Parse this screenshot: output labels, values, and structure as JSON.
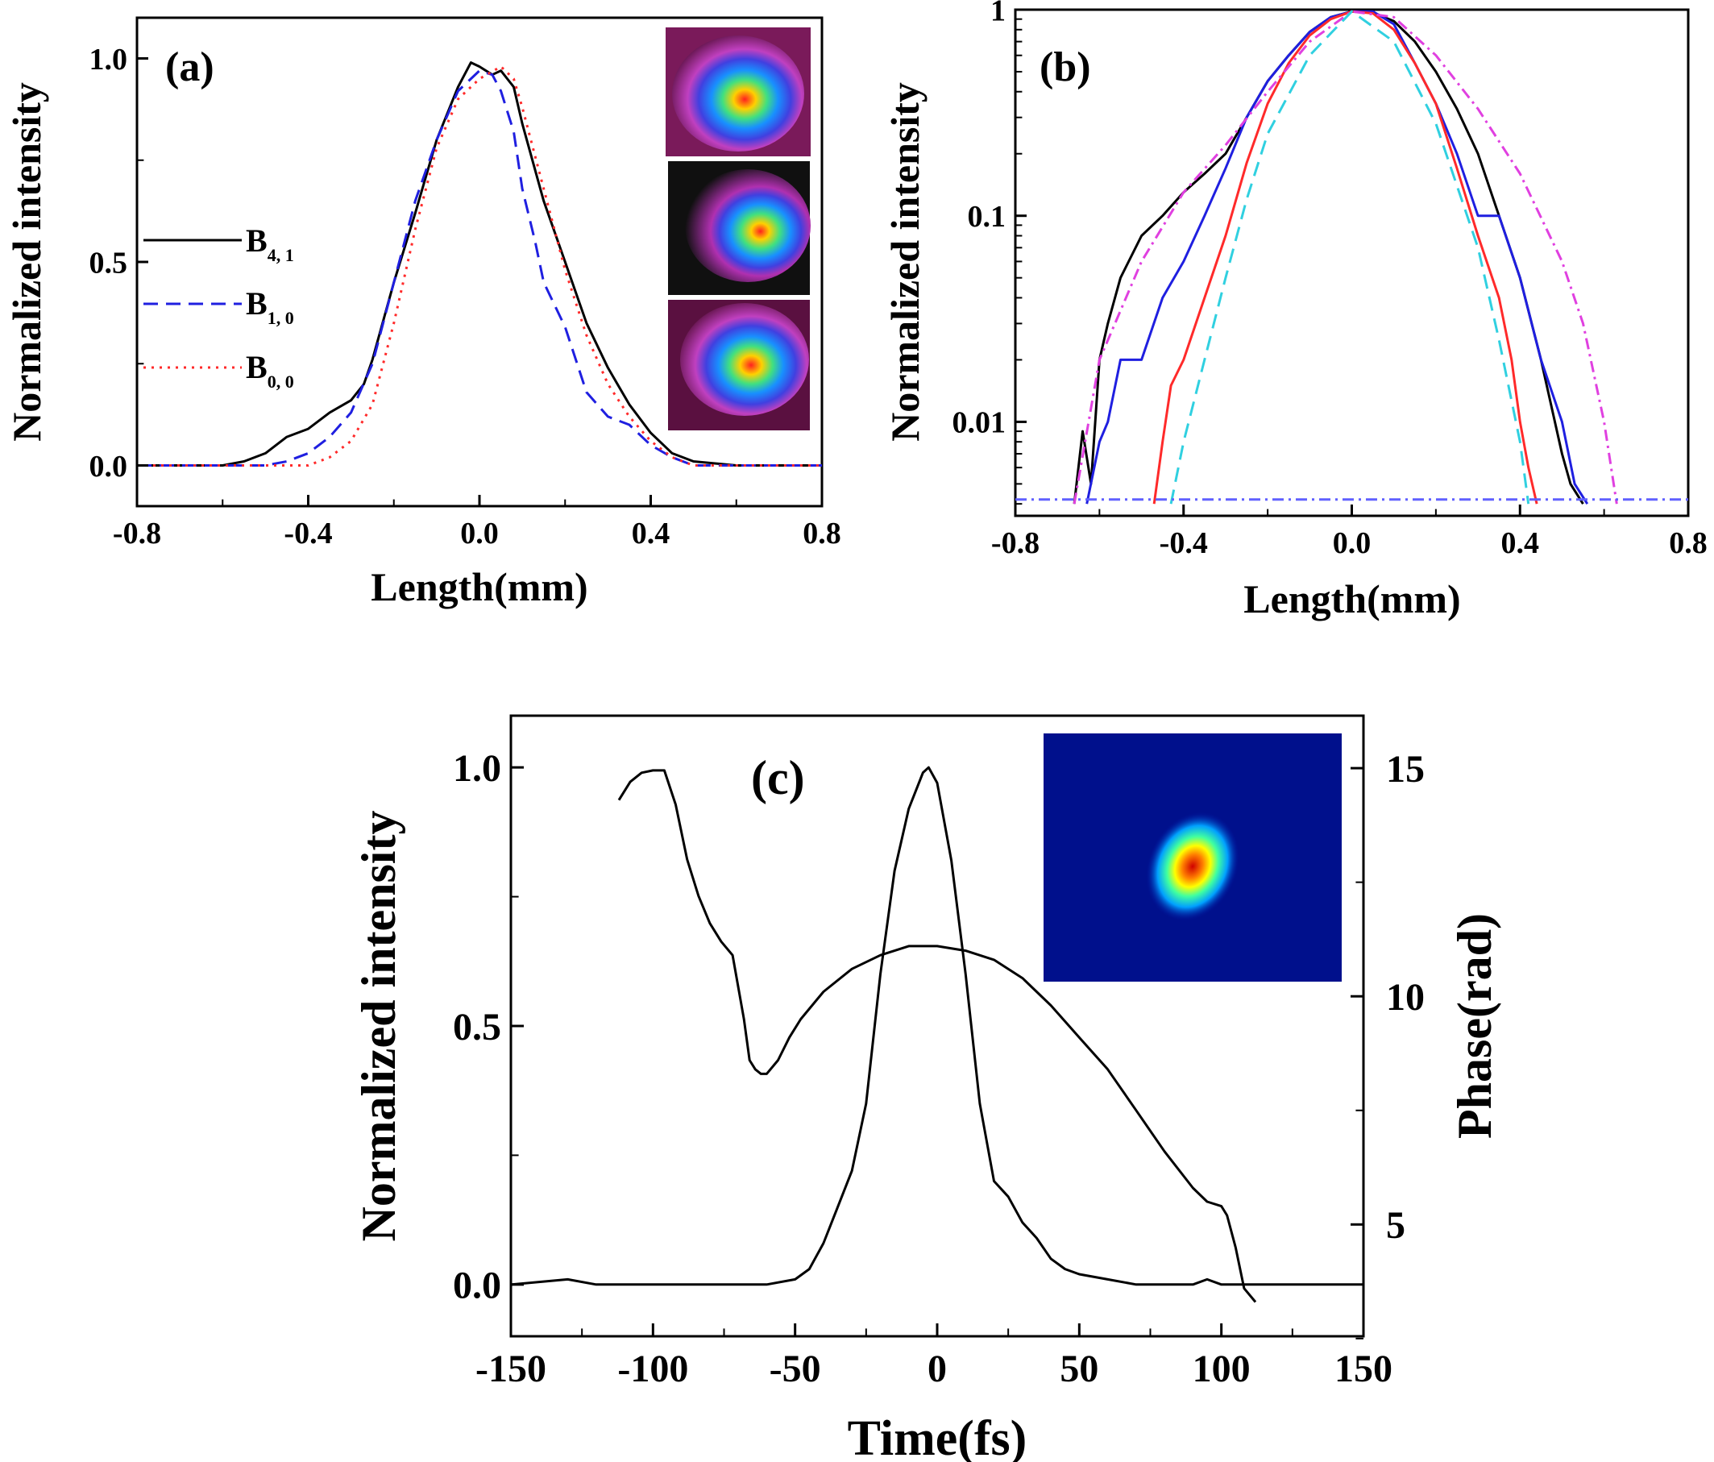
{
  "chart_data": [
    {
      "id": "a",
      "type": "line",
      "panel_label": "(a)",
      "xlabel": "Length(mm)",
      "ylabel": "Normalized intensity",
      "xlim": [
        -0.8,
        0.8
      ],
      "ylim": [
        -0.1,
        1.1
      ],
      "x_ticks": [
        -0.8,
        -0.4,
        0.0,
        0.4,
        0.8
      ],
      "x_tick_labels": [
        "-0.8",
        "-0.4",
        "0.0",
        "0.4",
        "0.8"
      ],
      "y_ticks": [
        0.0,
        0.5,
        1.0
      ],
      "y_tick_labels": [
        "0.0",
        "0.5",
        "1.0"
      ],
      "legend": [
        {
          "main": "B",
          "sub": "4, 1",
          "color": "#000000",
          "dash": "solid"
        },
        {
          "main": "B",
          "sub": "1, 0",
          "color": "#1f1fe0",
          "dash": "dash"
        },
        {
          "main": "B",
          "sub": "0, 0",
          "color": "#ff2a2a",
          "dash": "dot"
        }
      ],
      "series": [
        {
          "name": "B4,1",
          "color": "#000000",
          "dash": "solid",
          "x": [
            -0.8,
            -0.6,
            -0.55,
            -0.5,
            -0.45,
            -0.4,
            -0.35,
            -0.3,
            -0.27,
            -0.25,
            -0.2,
            -0.15,
            -0.1,
            -0.05,
            -0.02,
            0.0,
            0.03,
            0.05,
            0.08,
            0.1,
            0.15,
            0.2,
            0.25,
            0.3,
            0.35,
            0.4,
            0.45,
            0.5,
            0.6,
            0.8
          ],
          "y": [
            0.0,
            0.0,
            0.01,
            0.03,
            0.07,
            0.09,
            0.13,
            0.16,
            0.2,
            0.26,
            0.45,
            0.62,
            0.8,
            0.93,
            0.99,
            0.98,
            0.96,
            0.97,
            0.93,
            0.84,
            0.65,
            0.5,
            0.35,
            0.24,
            0.15,
            0.08,
            0.03,
            0.01,
            0.0,
            0.0
          ]
        },
        {
          "name": "B1,0",
          "color": "#1f1fe0",
          "dash": "dash",
          "x": [
            -0.8,
            -0.5,
            -0.45,
            -0.4,
            -0.35,
            -0.3,
            -0.25,
            -0.2,
            -0.15,
            -0.1,
            -0.05,
            0.0,
            0.03,
            0.05,
            0.08,
            0.1,
            0.13,
            0.15,
            0.2,
            0.25,
            0.3,
            0.35,
            0.4,
            0.45,
            0.5,
            0.8
          ],
          "y": [
            0.0,
            0.0,
            0.01,
            0.03,
            0.07,
            0.13,
            0.25,
            0.45,
            0.65,
            0.8,
            0.92,
            0.97,
            0.96,
            0.92,
            0.82,
            0.68,
            0.55,
            0.45,
            0.34,
            0.18,
            0.12,
            0.1,
            0.05,
            0.02,
            0.0,
            0.0
          ]
        },
        {
          "name": "B0,0",
          "color": "#ff2a2a",
          "dash": "dot",
          "x": [
            -0.8,
            -0.4,
            -0.35,
            -0.3,
            -0.25,
            -0.2,
            -0.15,
            -0.1,
            -0.05,
            0.0,
            0.05,
            0.08,
            0.1,
            0.15,
            0.2,
            0.25,
            0.3,
            0.35,
            0.4,
            0.45,
            0.5,
            0.8
          ],
          "y": [
            0.0,
            0.0,
            0.02,
            0.06,
            0.15,
            0.35,
            0.58,
            0.78,
            0.9,
            0.95,
            0.98,
            0.95,
            0.88,
            0.68,
            0.48,
            0.32,
            0.2,
            0.12,
            0.06,
            0.02,
            0.0,
            0.0
          ]
        }
      ]
    },
    {
      "id": "b",
      "type": "line",
      "panel_label": "(b)",
      "xlabel": "Length(mm)",
      "ylabel": "Normalized intensity",
      "yscale": "log",
      "xlim": [
        -0.8,
        0.8
      ],
      "ylim": [
        0.0035,
        1.0
      ],
      "x_ticks": [
        -0.8,
        -0.4,
        0.0,
        0.4,
        0.8
      ],
      "x_tick_labels": [
        "-0.8",
        "-0.4",
        "0.0",
        "0.4",
        "0.8"
      ],
      "y_ticks": [
        0.01,
        0.1,
        1
      ],
      "y_tick_labels": [
        "0.01",
        "0.1",
        "1"
      ],
      "series": [
        {
          "name": "black",
          "color": "#000000",
          "dash": "solid",
          "x": [
            -0.66,
            -0.64,
            -0.62,
            -0.6,
            -0.58,
            -0.55,
            -0.5,
            -0.45,
            -0.4,
            -0.35,
            -0.3,
            -0.25,
            -0.2,
            -0.15,
            -0.1,
            -0.05,
            0.0,
            0.05,
            0.1,
            0.15,
            0.2,
            0.25,
            0.3,
            0.35,
            0.4,
            0.45,
            0.5,
            0.52,
            0.55
          ],
          "y": [
            0.004,
            0.009,
            0.005,
            0.02,
            0.03,
            0.05,
            0.08,
            0.1,
            0.13,
            0.16,
            0.2,
            0.3,
            0.45,
            0.6,
            0.78,
            0.92,
            0.98,
            0.97,
            0.88,
            0.7,
            0.5,
            0.33,
            0.2,
            0.1,
            0.05,
            0.02,
            0.007,
            0.005,
            0.004
          ]
        },
        {
          "name": "blue",
          "color": "#1f1fe0",
          "dash": "solid",
          "x": [
            -0.63,
            -0.6,
            -0.58,
            -0.55,
            -0.5,
            -0.45,
            -0.4,
            -0.35,
            -0.3,
            -0.25,
            -0.2,
            -0.15,
            -0.1,
            -0.05,
            0.0,
            0.05,
            0.1,
            0.15,
            0.2,
            0.25,
            0.3,
            0.35,
            0.4,
            0.45,
            0.5,
            0.53,
            0.56
          ],
          "y": [
            0.004,
            0.008,
            0.01,
            0.02,
            0.02,
            0.04,
            0.06,
            0.1,
            0.17,
            0.3,
            0.45,
            0.6,
            0.78,
            0.92,
            0.98,
            0.98,
            0.85,
            0.55,
            0.35,
            0.2,
            0.1,
            0.1,
            0.05,
            0.02,
            0.01,
            0.005,
            0.004
          ]
        },
        {
          "name": "red",
          "color": "#ff2a2a",
          "dash": "solid",
          "x": [
            -0.47,
            -0.45,
            -0.43,
            -0.4,
            -0.35,
            -0.3,
            -0.25,
            -0.2,
            -0.15,
            -0.1,
            -0.05,
            0.0,
            0.05,
            0.1,
            0.15,
            0.2,
            0.25,
            0.3,
            0.35,
            0.38,
            0.4,
            0.42,
            0.44
          ],
          "y": [
            0.004,
            0.008,
            0.015,
            0.02,
            0.04,
            0.08,
            0.18,
            0.35,
            0.55,
            0.75,
            0.9,
            0.98,
            0.96,
            0.8,
            0.55,
            0.35,
            0.17,
            0.08,
            0.04,
            0.02,
            0.01,
            0.006,
            0.004
          ]
        },
        {
          "name": "magenta",
          "color": "#e040e0",
          "dash": "dashdot",
          "x": [
            -0.66,
            -0.6,
            -0.5,
            -0.4,
            -0.3,
            -0.2,
            -0.1,
            0.0,
            0.1,
            0.2,
            0.3,
            0.4,
            0.5,
            0.55,
            0.6,
            0.63
          ],
          "y": [
            0.004,
            0.02,
            0.06,
            0.13,
            0.22,
            0.4,
            0.7,
            0.98,
            0.92,
            0.6,
            0.33,
            0.16,
            0.06,
            0.03,
            0.01,
            0.004
          ]
        },
        {
          "name": "cyan",
          "color": "#30d0e0",
          "dash": "dash",
          "x": [
            -0.43,
            -0.4,
            -0.35,
            -0.3,
            -0.25,
            -0.2,
            -0.1,
            0.0,
            0.1,
            0.2,
            0.3,
            0.35,
            0.4,
            0.42
          ],
          "y": [
            0.004,
            0.008,
            0.02,
            0.05,
            0.12,
            0.25,
            0.6,
            0.98,
            0.7,
            0.28,
            0.07,
            0.025,
            0.008,
            0.004
          ]
        },
        {
          "name": "baseline",
          "color": "#6060ff",
          "dash": "dashdot",
          "x": [
            -0.8,
            -0.64,
            0.55,
            0.8
          ],
          "y": [
            0.0042,
            0.0042,
            0.0042,
            0.0042
          ]
        }
      ]
    },
    {
      "id": "c",
      "type": "line",
      "panel_label": "(c)",
      "xlabel": "Time(fs)",
      "ylabel": "Normalized intensity",
      "y2label": "Phase(rad)",
      "xlim": [
        -150,
        150
      ],
      "ylim": [
        -0.1,
        1.1
      ],
      "y2lim": [
        2.55,
        16.15
      ],
      "x_ticks": [
        -150,
        -100,
        -50,
        0,
        50,
        100,
        150
      ],
      "x_tick_labels": [
        "-150",
        "-100",
        "-50",
        "0",
        "50",
        "100",
        "150"
      ],
      "y_ticks": [
        0.0,
        0.5,
        1.0
      ],
      "y_tick_labels": [
        "0.0",
        "0.5",
        "1.0"
      ],
      "y2_ticks": [
        5,
        10,
        15
      ],
      "y2_tick_labels": [
        "5",
        "10",
        "15"
      ],
      "series": [
        {
          "name": "intensity",
          "axis": "left",
          "color": "#000000",
          "x": [
            -150,
            -130,
            -120,
            -100,
            -80,
            -60,
            -50,
            -45,
            -40,
            -35,
            -30,
            -25,
            -20,
            -15,
            -10,
            -5,
            -3,
            0,
            5,
            10,
            15,
            20,
            25,
            30,
            35,
            40,
            45,
            50,
            60,
            70,
            80,
            90,
            95,
            100,
            105,
            110,
            120,
            130,
            150
          ],
          "y": [
            0.0,
            0.01,
            0.0,
            0.0,
            0.0,
            0.0,
            0.01,
            0.03,
            0.08,
            0.15,
            0.22,
            0.35,
            0.6,
            0.8,
            0.92,
            0.99,
            1.0,
            0.97,
            0.82,
            0.6,
            0.35,
            0.2,
            0.17,
            0.12,
            0.09,
            0.05,
            0.03,
            0.02,
            0.01,
            0.0,
            0.0,
            0.0,
            0.01,
            0.0,
            0.0,
            0.0,
            0.0,
            0.0,
            0.0
          ]
        },
        {
          "name": "phase",
          "axis": "right",
          "color": "#000000",
          "x": [
            -112,
            -108,
            -104,
            -100,
            -96,
            -92,
            -88,
            -84,
            -80,
            -76,
            -72,
            -68,
            -66,
            -64,
            -62,
            -60,
            -56,
            -52,
            -48,
            -44,
            -40,
            -30,
            -20,
            -10,
            0,
            10,
            20,
            30,
            40,
            50,
            60,
            70,
            80,
            90,
            95,
            100,
            102,
            105,
            108,
            112
          ],
          "y": [
            14.3,
            14.7,
            14.9,
            14.95,
            14.95,
            14.2,
            13.0,
            12.2,
            11.6,
            11.2,
            10.9,
            9.5,
            8.6,
            8.4,
            8.3,
            8.3,
            8.6,
            9.1,
            9.5,
            9.8,
            10.1,
            10.6,
            10.9,
            11.1,
            11.1,
            11.0,
            10.8,
            10.4,
            9.8,
            9.1,
            8.4,
            7.5,
            6.6,
            5.8,
            5.5,
            5.4,
            5.2,
            4.5,
            3.6,
            3.3
          ]
        }
      ]
    }
  ]
}
